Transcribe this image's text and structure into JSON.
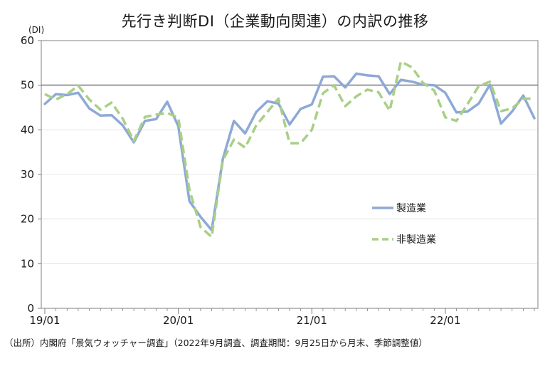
{
  "title": "先行き判断DI（企業動向関連）の内訳の推移",
  "unit_label": "(DI)",
  "source_note": "（出所）内閣府「景気ウォッチャー調査」（2022年9月調査、調査期間：9月25日から月末、季節調整値）",
  "colors": {
    "manufacturing": "#8ea9d6",
    "non_manufacturing": "#a9cf86",
    "reference_line": "#9a9a9a",
    "axis": "#808080",
    "grid": "#d0d0d0"
  },
  "chart_data": {
    "type": "line",
    "ylim": [
      0,
      60
    ],
    "yticks": [
      0,
      10,
      20,
      30,
      40,
      50,
      60
    ],
    "reference_line": 50,
    "xtick_labels": [
      {
        "label": "19/01",
        "index": 0
      },
      {
        "label": "20/01",
        "index": 12
      },
      {
        "label": "21/01",
        "index": 24
      },
      {
        "label": "22/01",
        "index": 36
      }
    ],
    "x": [
      "19/01",
      "19/02",
      "19/03",
      "19/04",
      "19/05",
      "19/06",
      "19/07",
      "19/08",
      "19/09",
      "19/10",
      "19/11",
      "19/12",
      "20/01",
      "20/02",
      "20/03",
      "20/04",
      "20/05",
      "20/06",
      "20/07",
      "20/08",
      "20/09",
      "20/10",
      "20/11",
      "20/12",
      "21/01",
      "21/02",
      "21/03",
      "21/04",
      "21/05",
      "21/06",
      "21/07",
      "21/08",
      "21/09",
      "21/10",
      "21/11",
      "21/12",
      "22/01",
      "22/02",
      "22/03",
      "22/04",
      "22/05",
      "22/06",
      "22/07",
      "22/08",
      "22/09"
    ],
    "legend_position": "right",
    "series": [
      {
        "name": "製造業",
        "style": "solid",
        "values": [
          45.8,
          48.0,
          47.8,
          48.3,
          44.8,
          43.2,
          43.3,
          41.0,
          37.2,
          42.0,
          42.4,
          46.3,
          40.8,
          24.0,
          20.5,
          17.5,
          33.5,
          42.0,
          39.2,
          44.0,
          46.4,
          45.9,
          41.2,
          44.7,
          45.7,
          51.9,
          52.0,
          49.5,
          52.6,
          52.2,
          52.0,
          48.0,
          51.2,
          50.8,
          50.1,
          50.0,
          48.3,
          43.9,
          44.1,
          45.9,
          50.1,
          41.4,
          44.1,
          47.7,
          42.6
        ]
      },
      {
        "name": "非製造業",
        "style": "dashed",
        "values": [
          48.0,
          46.8,
          48.0,
          49.9,
          46.8,
          44.5,
          46.1,
          42.5,
          37.5,
          42.9,
          43.4,
          43.8,
          42.7,
          26.5,
          18.2,
          16.0,
          33.2,
          37.8,
          36.0,
          41.0,
          44.0,
          47.0,
          37.0,
          37.0,
          40.0,
          48.2,
          50.0,
          45.3,
          47.5,
          49.0,
          48.4,
          44.3,
          55.3,
          54.0,
          50.5,
          48.8,
          42.8,
          42.0,
          45.8,
          49.8,
          50.8,
          44.2,
          44.8,
          47.0,
          47.0
        ]
      }
    ]
  }
}
